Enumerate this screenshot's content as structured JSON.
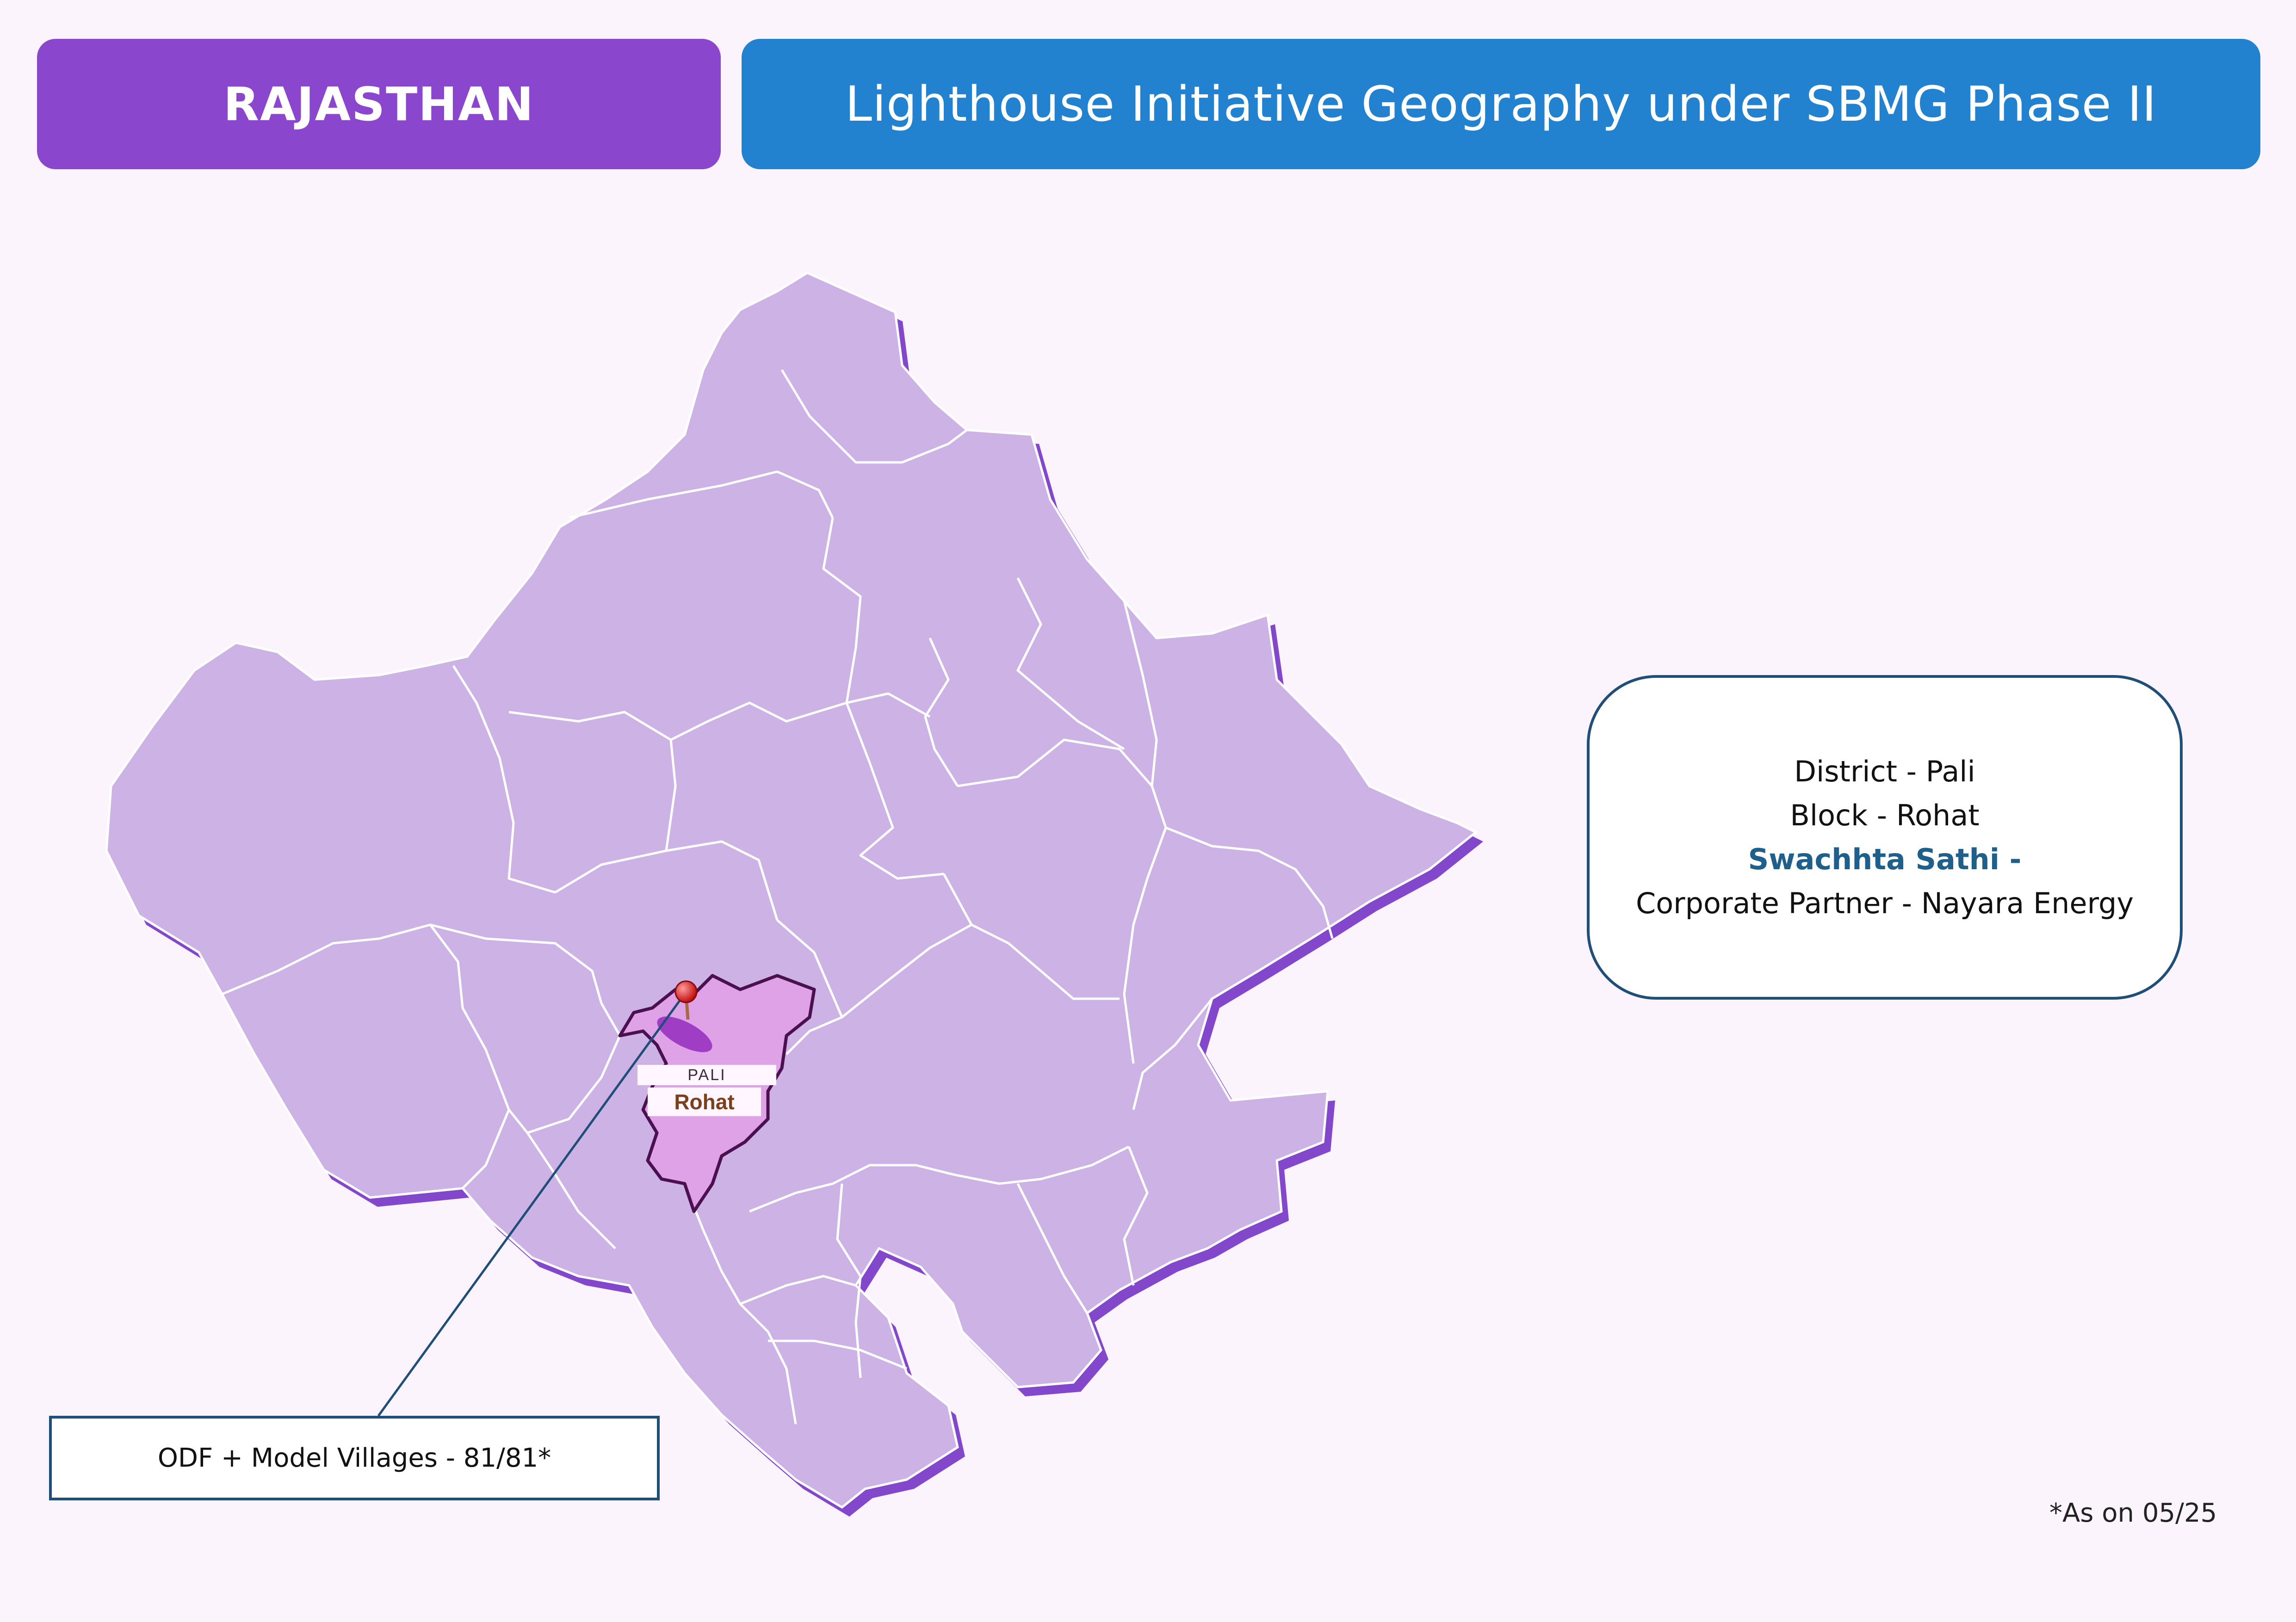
{
  "header": {
    "state": "RAJASTHAN",
    "title": "Lighthouse Initiative Geography under SBMG Phase II"
  },
  "map": {
    "region_fill": "#cdb2e6",
    "region_shadow": "#8347cc",
    "highlight_fill": "#e0a2e6",
    "highlight_border": "#4a1050",
    "marker_icon": "map-pin-icon",
    "district_label": "PALI",
    "block_label": "Rohat"
  },
  "info_card": {
    "district": "District - Pali",
    "block": "Block - Rohat",
    "swachhta_sathi": "Swachhta Sathi -",
    "partner": "Corporate Partner - Nayara Energy"
  },
  "callout": {
    "text": "ODF + Model Villages - 81/81*"
  },
  "footnote": "*As on 05/25"
}
